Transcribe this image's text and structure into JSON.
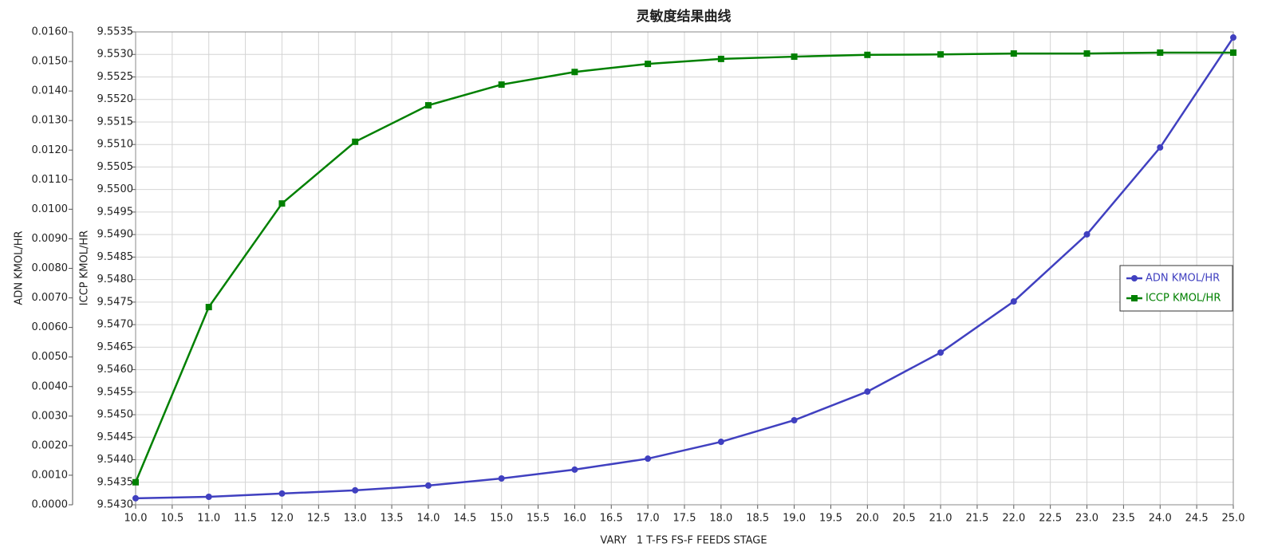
{
  "chart_data": {
    "type": "line",
    "title": "灵敏度结果曲线",
    "xlabel": "VARY   1 T-FS FS-F FEEDS STAGE",
    "ylabel": "ADN KMOL/HR",
    "y2label": "ICCP KMOL/HR",
    "x": [
      10,
      11,
      12,
      13,
      14,
      15,
      16,
      17,
      18,
      19,
      20,
      21,
      22,
      23,
      24,
      25
    ],
    "series": [
      {
        "name": "ADN KMOL/HR",
        "color": "#4040c0",
        "marker": "circle",
        "axis": "y",
        "values": [
          0.00022,
          0.00027,
          0.00038,
          0.00049,
          0.00065,
          0.00089,
          0.00119,
          0.00156,
          0.00213,
          0.00286,
          0.00383,
          0.00515,
          0.00688,
          0.00915,
          0.01209,
          0.01581
        ]
      },
      {
        "name": "ICCP KMOL/HR",
        "color": "#008000",
        "marker": "square",
        "axis": "y2",
        "values": [
          9.5435,
          9.54739,
          9.54969,
          9.55106,
          9.55187,
          9.55233,
          9.55261,
          9.55279,
          9.5529,
          9.55295,
          9.55299,
          9.553,
          9.55302,
          9.55302,
          9.55304,
          9.55304
        ]
      }
    ],
    "xlim": [
      10,
      25
    ],
    "xticks": [
      {
        "value": 10,
        "label": "10.0"
      },
      10.5,
      {
        "value": 11,
        "label": "11.0"
      },
      11.5,
      {
        "value": 12,
        "label": "12.0"
      },
      12.5,
      {
        "value": 13,
        "label": "13.0"
      },
      13.5,
      {
        "value": 14,
        "label": "14.0"
      },
      14.5,
      {
        "value": 15,
        "label": "15.0"
      },
      15.5,
      {
        "value": 16,
        "label": "16.0"
      },
      16.5,
      {
        "value": 17,
        "label": "17.0"
      },
      17.5,
      {
        "value": 18,
        "label": "18.0"
      },
      18.5,
      {
        "value": 19,
        "label": "19.0"
      },
      19.5,
      {
        "value": 20,
        "label": "20.0"
      },
      20.5,
      {
        "value": 21,
        "label": "21.0"
      },
      21.5,
      {
        "value": 22,
        "label": "22.0"
      },
      22.5,
      {
        "value": 23,
        "label": "23.0"
      },
      23.5,
      {
        "value": 24,
        "label": "24.0"
      },
      24.5,
      {
        "value": 25,
        "label": "25.0"
      }
    ],
    "ylim": [
      0,
      0.016
    ],
    "yticks": [
      {
        "value": 0,
        "label": "0.0000"
      },
      {
        "value": 0.001,
        "label": "0.0010"
      },
      {
        "value": 0.002,
        "label": "0.0020"
      },
      {
        "value": 0.003,
        "label": "0.0030"
      },
      {
        "value": 0.004,
        "label": "0.0040"
      },
      {
        "value": 0.005,
        "label": "0.0050"
      },
      {
        "value": 0.006,
        "label": "0.0060"
      },
      {
        "value": 0.007,
        "label": "0.0070"
      },
      {
        "value": 0.008,
        "label": "0.0080"
      },
      {
        "value": 0.009,
        "label": "0.0090"
      },
      {
        "value": 0.01,
        "label": "0.0100"
      },
      {
        "value": 0.011,
        "label": "0.0110"
      },
      {
        "value": 0.012,
        "label": "0.0120"
      },
      {
        "value": 0.013,
        "label": "0.0130"
      },
      {
        "value": 0.014,
        "label": "0.0140"
      },
      {
        "value": 0.015,
        "label": "0.0150"
      },
      {
        "value": 0.016,
        "label": "0.0160"
      }
    ],
    "y2lim": [
      9.543,
      9.5535
    ],
    "y2ticks": [
      {
        "value": 9.543,
        "label": "9.5430"
      },
      9.5435,
      {
        "value": 9.544,
        "label": "9.5440"
      },
      9.5445,
      {
        "value": 9.545,
        "label": "9.5450"
      },
      9.5455,
      {
        "value": 9.546,
        "label": "9.5460"
      },
      9.5465,
      {
        "value": 9.547,
        "label": "9.5470"
      },
      9.5475,
      {
        "value": 9.548,
        "label": "9.5480"
      },
      9.5485,
      {
        "value": 9.549,
        "label": "9.5490"
      },
      9.5495,
      {
        "value": 9.55,
        "label": "9.5500"
      },
      9.5505,
      {
        "value": 9.551,
        "label": "9.5510"
      },
      9.5515,
      {
        "value": 9.552,
        "label": "9.5520"
      },
      9.5525,
      {
        "value": 9.553,
        "label": "9.5530"
      },
      9.5535
    ],
    "grid": true,
    "legend_position": "right"
  }
}
